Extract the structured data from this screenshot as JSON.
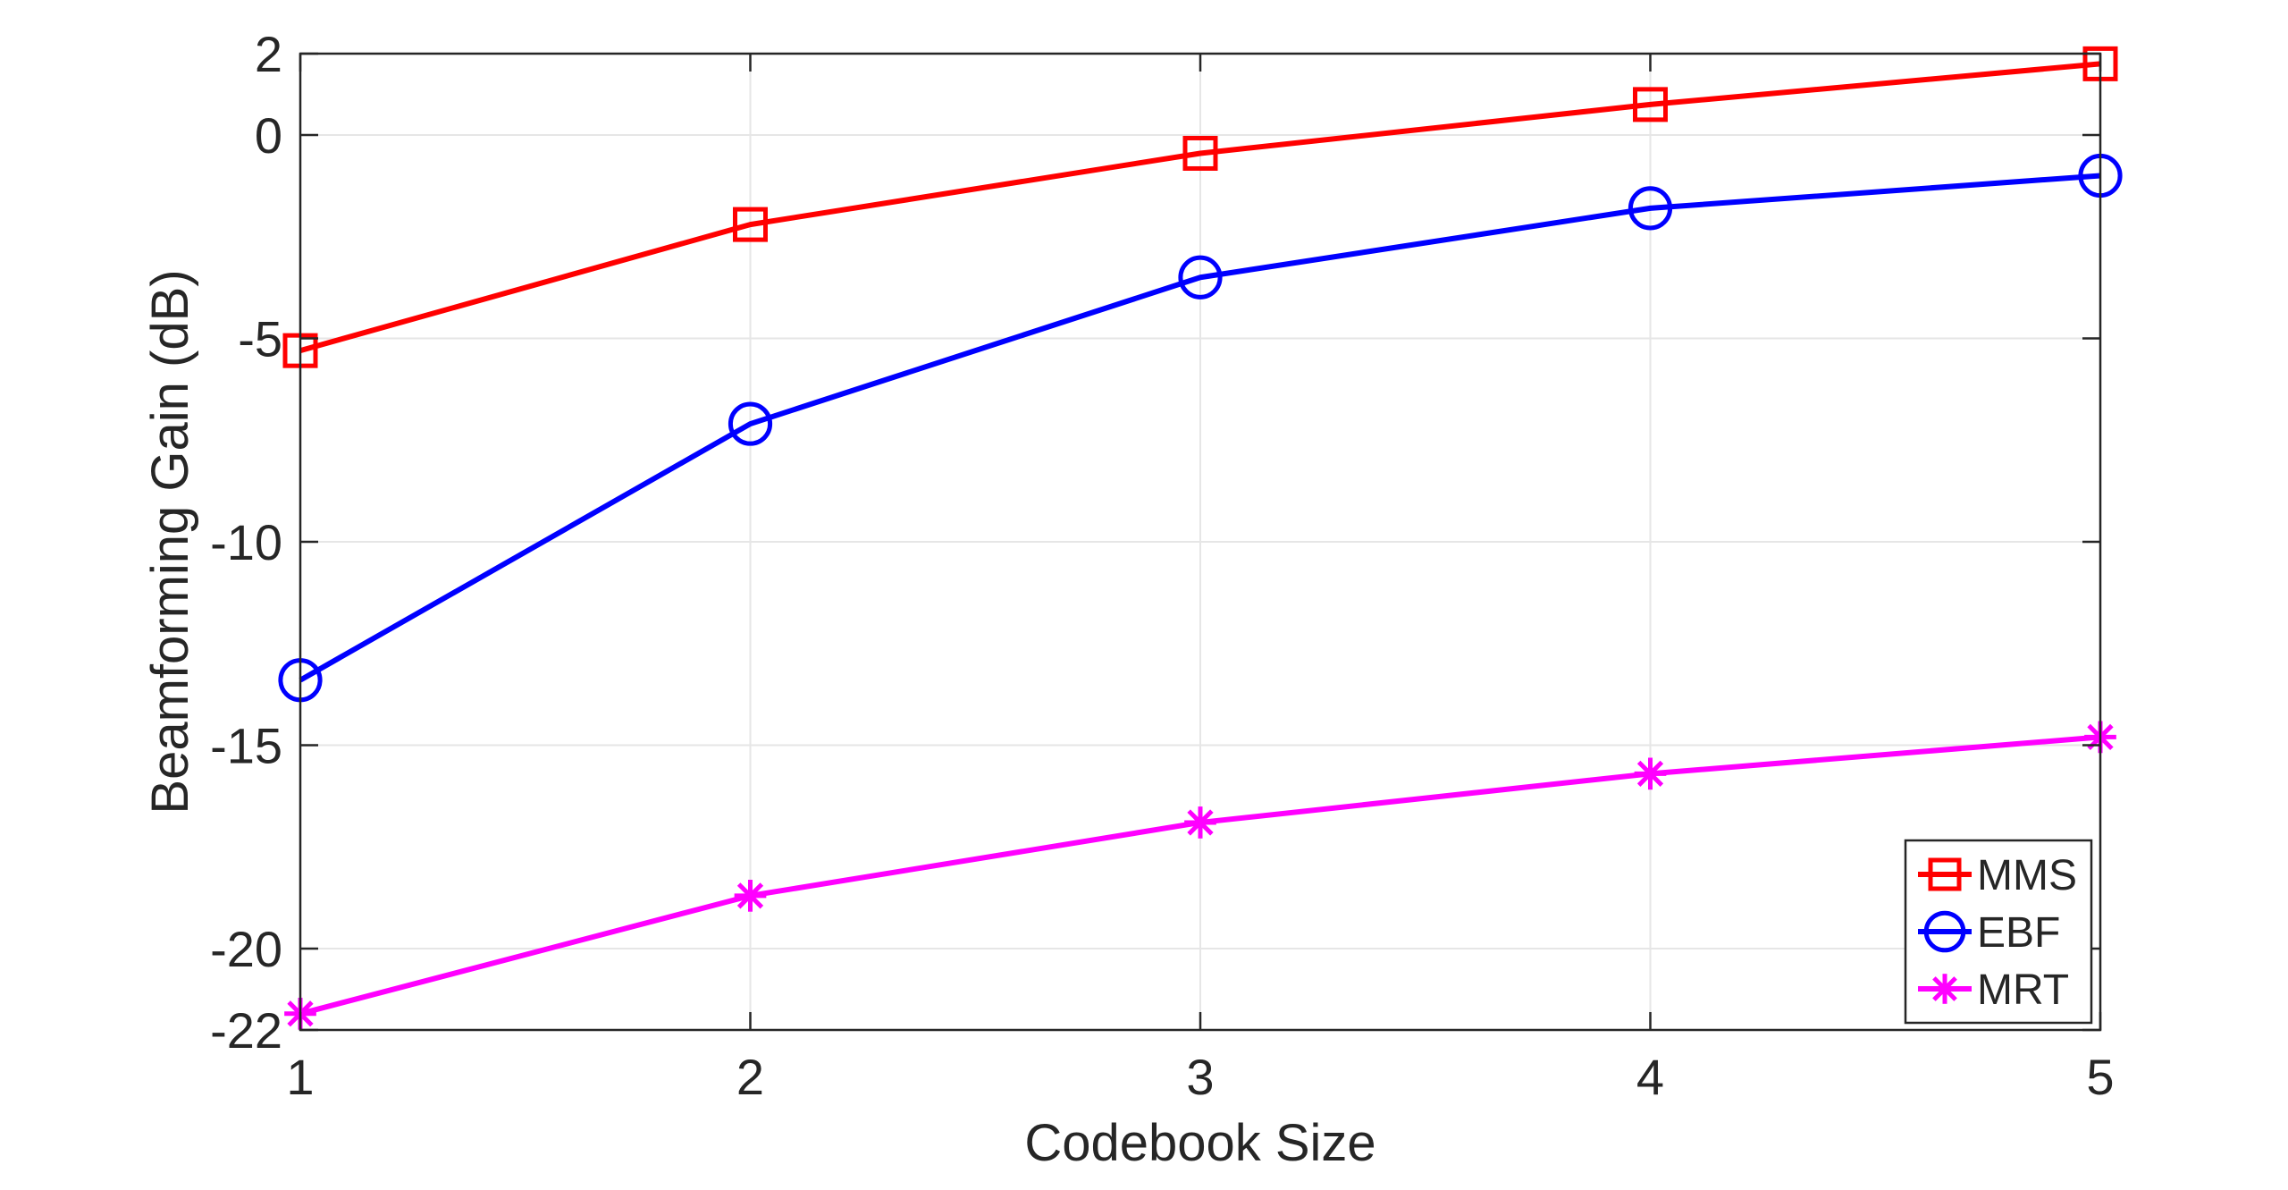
{
  "chart_data": {
    "type": "line",
    "title": "",
    "xlabel": "Codebook Size",
    "ylabel": "Beamforming Gain (dB)",
    "xlim": [
      1,
      5
    ],
    "ylim": [
      -22,
      2
    ],
    "xticks": [
      1,
      2,
      3,
      4,
      5
    ],
    "yticks": [
      -22,
      -20,
      -15,
      -10,
      -5,
      0,
      2
    ],
    "x": [
      1,
      2,
      3,
      4,
      5
    ],
    "grid": true,
    "legend_position": "bottom-right",
    "series": [
      {
        "name": "MMS",
        "marker": "square",
        "color": "#ff0000",
        "values": [
          -5.3,
          -2.2,
          -0.45,
          0.75,
          1.75
        ]
      },
      {
        "name": "EBF",
        "marker": "circle",
        "color": "#0000ff",
        "values": [
          -13.4,
          -7.1,
          -3.5,
          -1.8,
          -1.0
        ]
      },
      {
        "name": "MRT",
        "marker": "asterisk",
        "color": "#ff00ff",
        "values": [
          -21.6,
          -18.7,
          -16.9,
          -15.7,
          -14.8
        ]
      }
    ]
  }
}
